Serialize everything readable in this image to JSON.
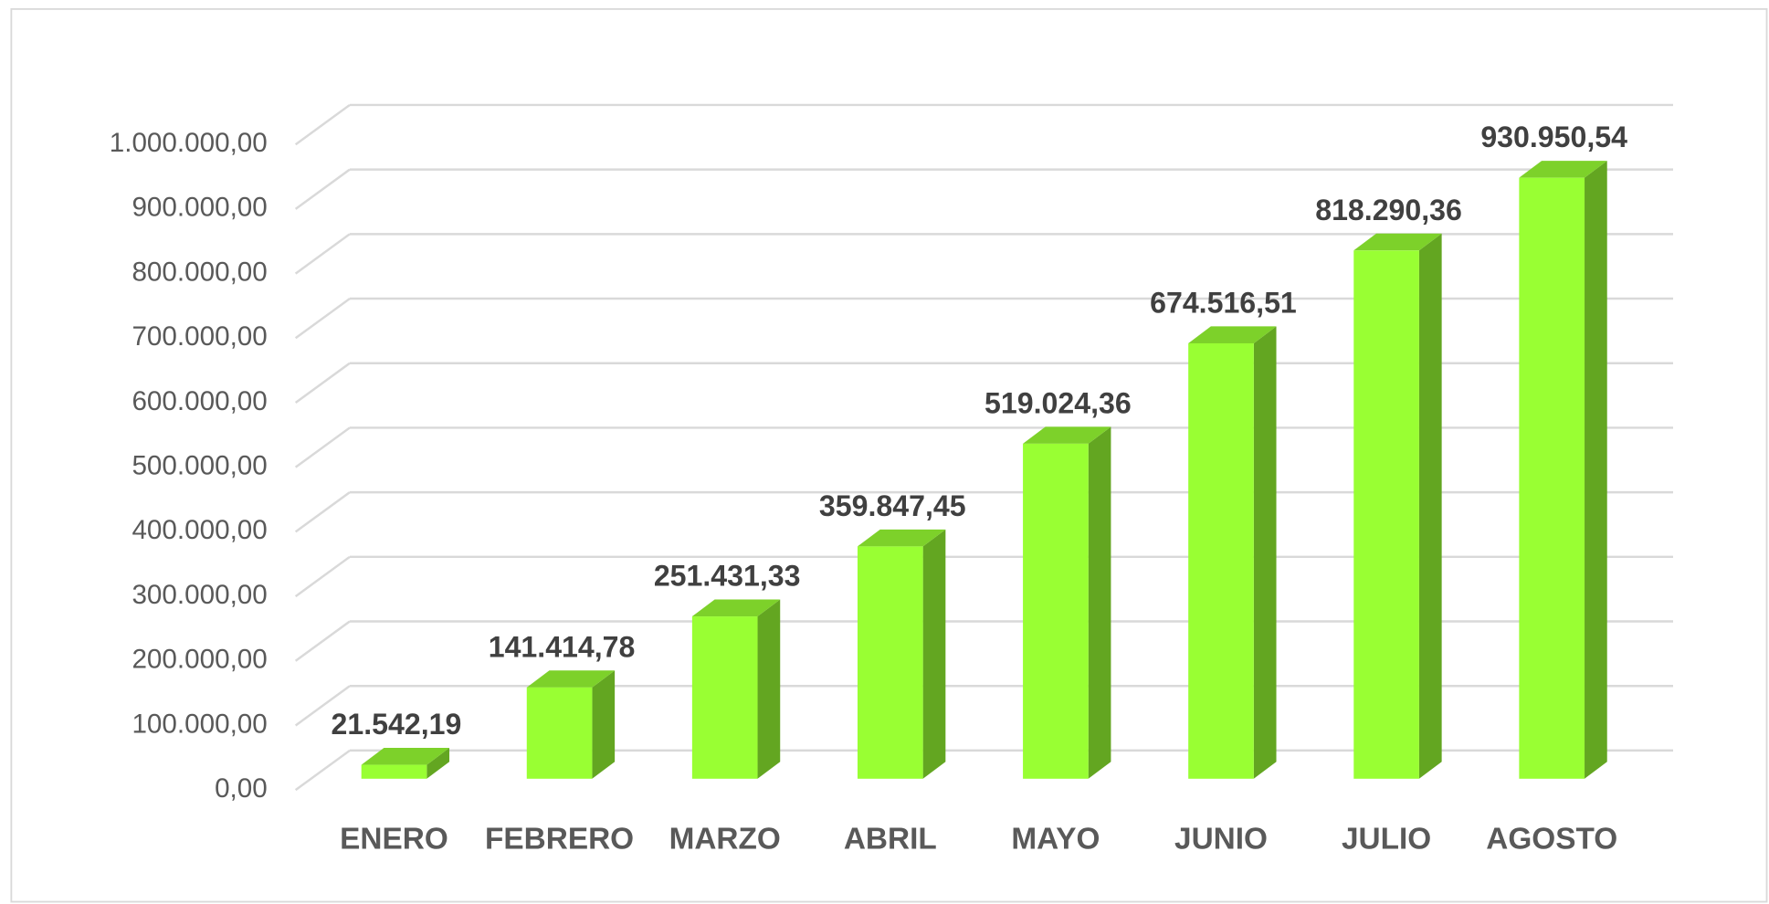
{
  "chart_data": {
    "type": "bar",
    "categories": [
      "ENERO",
      "FEBRERO",
      "MARZO",
      "ABRIL",
      "MAYO",
      "JUNIO",
      "JULIO",
      "AGOSTO"
    ],
    "values": [
      21542.19,
      141414.78,
      251431.33,
      359847.45,
      519024.36,
      674516.51,
      818290.36,
      930950.54
    ],
    "value_labels": [
      "21.542,19",
      "141.414,78",
      "251.431,33",
      "359.847,45",
      "519.024,36",
      "674.516,51",
      "818.290,36",
      "930.950,54"
    ],
    "color": "#99ff33",
    "ylim": [
      0,
      1000000
    ],
    "yticks": [
      {
        "value": 0,
        "label": "0,00"
      },
      {
        "value": 100000,
        "label": "100.000,00"
      },
      {
        "value": 200000,
        "label": "200.000,00"
      },
      {
        "value": 300000,
        "label": "300.000,00"
      },
      {
        "value": 400000,
        "label": "400.000,00"
      },
      {
        "value": 500000,
        "label": "500.000,00"
      },
      {
        "value": 600000,
        "label": "600.000,00"
      },
      {
        "value": 700000,
        "label": "700.000,00"
      },
      {
        "value": 800000,
        "label": "800.000,00"
      },
      {
        "value": 900000,
        "label": "900.000,00"
      },
      {
        "value": 1000000,
        "label": "1.000.000,00"
      }
    ],
    "grid": true
  }
}
